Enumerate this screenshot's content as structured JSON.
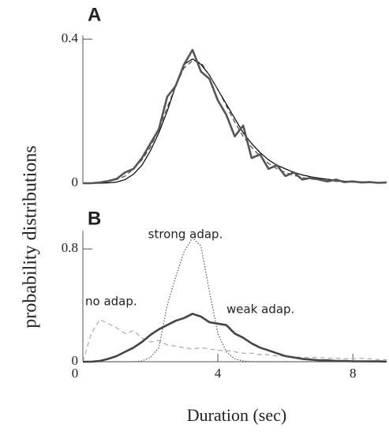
{
  "ylabel": "probability distributions",
  "xlabel": "Duration (sec)",
  "chart_data": [
    {
      "type": "line",
      "title": "A",
      "x": [
        0,
        0.25,
        0.5,
        0.75,
        1,
        1.25,
        1.5,
        1.75,
        2,
        2.25,
        2.5,
        2.75,
        3,
        3.25,
        3.5,
        3.75,
        4,
        4.25,
        4.5,
        4.75,
        5,
        5.25,
        5.5,
        5.75,
        6,
        6.25,
        6.5,
        6.75,
        7,
        7.25,
        7.5,
        7.75,
        8,
        8.25,
        8.5,
        8.75,
        9
      ],
      "xlim": [
        0,
        9
      ],
      "ylim": [
        0,
        0.41
      ],
      "yticks": [
        0,
        0.4
      ],
      "series": [
        {
          "color": "#000000",
          "style": "solid",
          "weight": "thin",
          "values": [
            0,
            0,
            0,
            0.001,
            0.003,
            0.01,
            0.025,
            0.05,
            0.09,
            0.14,
            0.2,
            0.27,
            0.33,
            0.345,
            0.33,
            0.3,
            0.26,
            0.22,
            0.18,
            0.14,
            0.11,
            0.085,
            0.065,
            0.05,
            0.04,
            0.03,
            0.023,
            0.018,
            0.014,
            0.011,
            0.008,
            0.006,
            0.005,
            0.004,
            0.003,
            0.002,
            0.002
          ]
        },
        {
          "color": "#444444",
          "style": "dashed",
          "weight": "thin",
          "values": [
            0,
            0,
            0.002,
            0.005,
            0.01,
            0.02,
            0.04,
            0.065,
            0.1,
            0.15,
            0.21,
            0.27,
            0.32,
            0.34,
            0.335,
            0.3,
            0.26,
            0.215,
            0.17,
            0.13,
            0.1,
            0.075,
            0.055,
            0.04,
            0.03,
            0.022,
            0.016,
            0.012,
            0.009,
            0.007,
            0.005,
            0.004,
            0.003,
            0.002,
            0.002,
            0.001,
            0.001
          ]
        },
        {
          "color": "#555555",
          "style": "solid",
          "weight": "thick",
          "values": [
            0,
            0,
            0.002,
            0.006,
            0.012,
            0.03,
            0.04,
            0.07,
            0.11,
            0.15,
            0.24,
            0.27,
            0.33,
            0.37,
            0.31,
            0.29,
            0.23,
            0.19,
            0.13,
            0.16,
            0.07,
            0.08,
            0.04,
            0.05,
            0.02,
            0.03,
            0.01,
            0.015,
            0.01,
            0.005,
            0.01,
            0.003,
            0.005,
            0.002,
            0.003,
            0.001,
            0.002
          ]
        }
      ]
    },
    {
      "type": "line",
      "title": "B",
      "x": [
        0,
        0.25,
        0.5,
        0.75,
        1,
        1.25,
        1.5,
        1.75,
        2,
        2.25,
        2.5,
        2.75,
        3,
        3.25,
        3.5,
        3.75,
        4,
        4.25,
        4.5,
        4.75,
        5,
        5.25,
        5.5,
        5.75,
        6,
        6.25,
        6.5,
        6.75,
        7,
        7.25,
        7.5,
        7.75,
        8,
        8.25,
        8.5,
        8.75,
        9
      ],
      "xlim": [
        0,
        9
      ],
      "ylim": [
        0,
        0.93
      ],
      "xticks": [
        0,
        4,
        8
      ],
      "yticks": [
        0,
        0.8
      ],
      "annotations": [
        "strong adap.",
        "no adap.",
        "weak adap."
      ],
      "series": [
        {
          "color": "#aaaaaa",
          "style": "dashed",
          "weight": "thin",
          "values": [
            0,
            0.2,
            0.3,
            0.27,
            0.24,
            0.2,
            0.22,
            0.17,
            0.14,
            0.15,
            0.12,
            0.11,
            0.1,
            0.09,
            0.1,
            0.09,
            0.08,
            0.08,
            0.07,
            0.06,
            0.06,
            0.05,
            0.05,
            0.04,
            0.04,
            0.035,
            0.03,
            0.03,
            0.03,
            0.025,
            0.025,
            0.02,
            0.02,
            0.025,
            0.02,
            0.015,
            0.015
          ]
        },
        {
          "color": "#555555",
          "style": "dotted",
          "weight": "thin",
          "values": [
            0,
            0,
            0,
            0,
            0,
            0,
            0,
            0.005,
            0.03,
            0.1,
            0.4,
            0.6,
            0.78,
            0.88,
            0.82,
            0.5,
            0.2,
            0.07,
            0.02,
            0.005,
            0,
            0,
            0,
            0,
            0,
            0,
            0,
            0,
            0,
            0,
            0,
            0,
            0,
            0,
            0,
            0,
            0
          ]
        },
        {
          "color": "#444444",
          "style": "solid",
          "weight": "thick",
          "values": [
            0,
            0,
            0.005,
            0.02,
            0.04,
            0.07,
            0.1,
            0.14,
            0.19,
            0.23,
            0.26,
            0.29,
            0.31,
            0.34,
            0.32,
            0.28,
            0.27,
            0.26,
            0.2,
            0.17,
            0.13,
            0.1,
            0.08,
            0.06,
            0.04,
            0.03,
            0.02,
            0.015,
            0.01,
            0.01,
            0.005,
            0.005,
            0.003,
            0.003,
            0.002,
            0.002,
            0.001
          ]
        }
      ]
    }
  ]
}
